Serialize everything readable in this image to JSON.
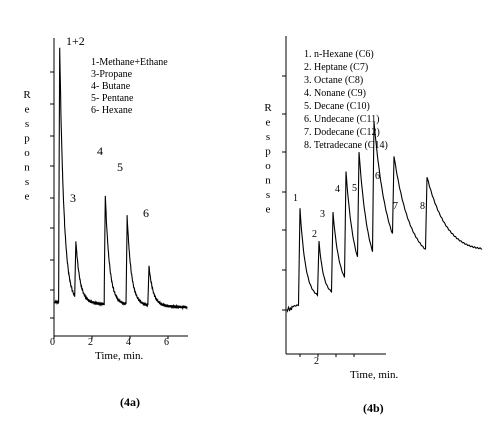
{
  "chart_data": [
    {
      "type": "line",
      "id": "4a",
      "panel_label": "(4a)",
      "xlabel": "Time, min.",
      "ylabel": "Response",
      "xlim": [
        0,
        7
      ],
      "x_ticks": [
        "0",
        "2",
        "4",
        "6"
      ],
      "peak_label_top": "1+2",
      "legend": [
        "1-Methane+Ethane",
        "3-Propane",
        "4- Butane",
        "5- Pentane",
        "6- Hexane"
      ],
      "peak_labels": [
        "3",
        "4",
        "5",
        "6"
      ],
      "peaks": [
        {
          "label": "1+2",
          "x": 0.3,
          "height": 0.98
        },
        {
          "label": "3",
          "x": 1.15,
          "height": 0.22
        },
        {
          "label": "4",
          "x": 2.7,
          "height": 0.42
        },
        {
          "label": "5",
          "x": 3.85,
          "height": 0.34
        },
        {
          "label": "6",
          "x": 5.0,
          "height": 0.15
        }
      ]
    },
    {
      "type": "line",
      "id": "4b",
      "panel_label": "(4b)",
      "xlabel": "Time, min.",
      "ylabel": "Response",
      "x_ticks": [
        "2"
      ],
      "legend": [
        "1. n-Hexane (C6)",
        "2. Heptane (C7)",
        "3. Octane (C8)",
        "4. Nonane (C9)",
        "5. Decane (C10)",
        "6. Undecane (C11)",
        "7. Dodecane (C12)",
        "8. Tetradecane (C14)"
      ],
      "peak_labels": [
        "1",
        "2",
        "3",
        "4",
        "5",
        "6",
        "7",
        "8"
      ]
    }
  ]
}
